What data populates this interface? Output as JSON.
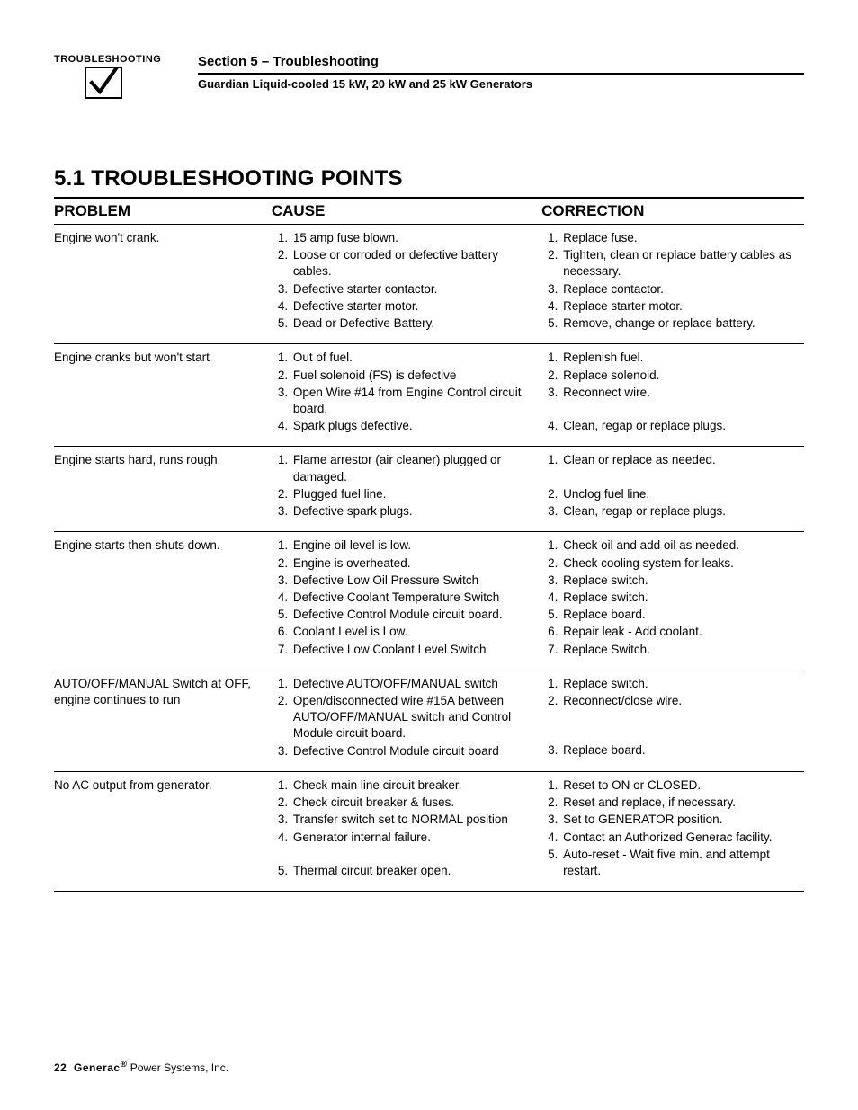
{
  "header": {
    "icon_label": "TROUBLESHOOTING",
    "section_title": "Section 5 – Troubleshooting",
    "section_sub": "Guardian Liquid-cooled 15 kW, 20 kW and 25 kW Generators"
  },
  "heading": "5.1   TROUBLESHOOTING POINTS",
  "columns": {
    "problem": "PROBLEM",
    "cause": "CAUSE",
    "correction": "CORRECTION"
  },
  "rows": [
    {
      "problem": "Engine won't crank.",
      "causes": [
        "15 amp fuse blown.",
        "Loose or corroded or defective battery cables.",
        "Defective starter contactor.",
        "Defective starter motor.",
        "Dead or Defective Battery."
      ],
      "corrections": [
        "Replace fuse.",
        "Tighten, clean or replace battery cables as necessary.",
        "Replace contactor.",
        "Replace starter motor.",
        "Remove, change or replace battery."
      ]
    },
    {
      "problem": "Engine cranks but won't start",
      "causes": [
        "Out of fuel.",
        "Fuel solenoid (FS) is defective",
        "Open Wire #14 from Engine Control circuit board.",
        "Spark plugs defective."
      ],
      "corrections": [
        "Replenish fuel.",
        "Replace solenoid.",
        "Reconnect wire.",
        "Clean, regap or replace plugs."
      ],
      "correction_spacing": [
        0,
        0,
        19,
        0
      ]
    },
    {
      "problem": "Engine starts hard, runs rough.",
      "causes": [
        "Flame arrestor (air cleaner) plugged or damaged.",
        "Plugged fuel line.",
        "Defective spark plugs."
      ],
      "corrections": [
        "Clean or replace as needed.",
        "Unclog fuel line.",
        "Clean, regap or replace plugs."
      ],
      "correction_spacing": [
        19,
        0,
        0
      ]
    },
    {
      "problem": "Engine starts then shuts down.",
      "causes": [
        "Engine oil level is low.",
        "Engine is overheated.",
        "Defective Low Oil Pressure Switch",
        "Defective Coolant Temperature Switch",
        "Defective Control Module circuit board.",
        "Coolant Level is Low.",
        "Defective Low Coolant Level Switch"
      ],
      "corrections": [
        "Check oil and add oil as needed.",
        "Check cooling system for leaks.",
        "Replace switch.",
        "Replace switch.",
        "Replace board.",
        "Repair leak - Add coolant.",
        "Replace Switch."
      ]
    },
    {
      "problem": "AUTO/OFF/MANUAL Switch at OFF, engine continues to run",
      "causes": [
        "Defective AUTO/OFF/MANUAL switch",
        "Open/disconnected wire #15A between AUTO/OFF/MANUAL switch and Control Module circuit board.",
        "Defective Control Module circuit board"
      ],
      "corrections": [
        "Replace switch.",
        "Reconnect/close wire.",
        "Replace board."
      ],
      "correction_spacing": [
        0,
        37,
        0
      ]
    },
    {
      "problem": "No AC output from generator.",
      "causes": [
        "Check main line circuit breaker.",
        "Check circuit breaker & fuses.",
        "Transfer switch set to NORMAL position",
        "Generator internal failure.",
        "Thermal circuit breaker open."
      ],
      "corrections": [
        "Reset to ON or CLOSED.",
        "Reset and replace, if necessary.",
        "Set to GENERATOR position.",
        "Contact an Authorized Generac facility.",
        "Auto-reset - Wait five min. and attempt restart."
      ],
      "cause_spacing": [
        0,
        0,
        0,
        19,
        0
      ]
    }
  ],
  "footer": {
    "page": "22",
    "brand": "Generac",
    "rest": " Power Systems, Inc."
  },
  "style": {
    "page_bg": "#ffffff",
    "text_color": "#000000",
    "rule_color": "#000000",
    "heading_fontsize": 24,
    "body_fontsize": 13.5,
    "th_fontsize": 17
  }
}
